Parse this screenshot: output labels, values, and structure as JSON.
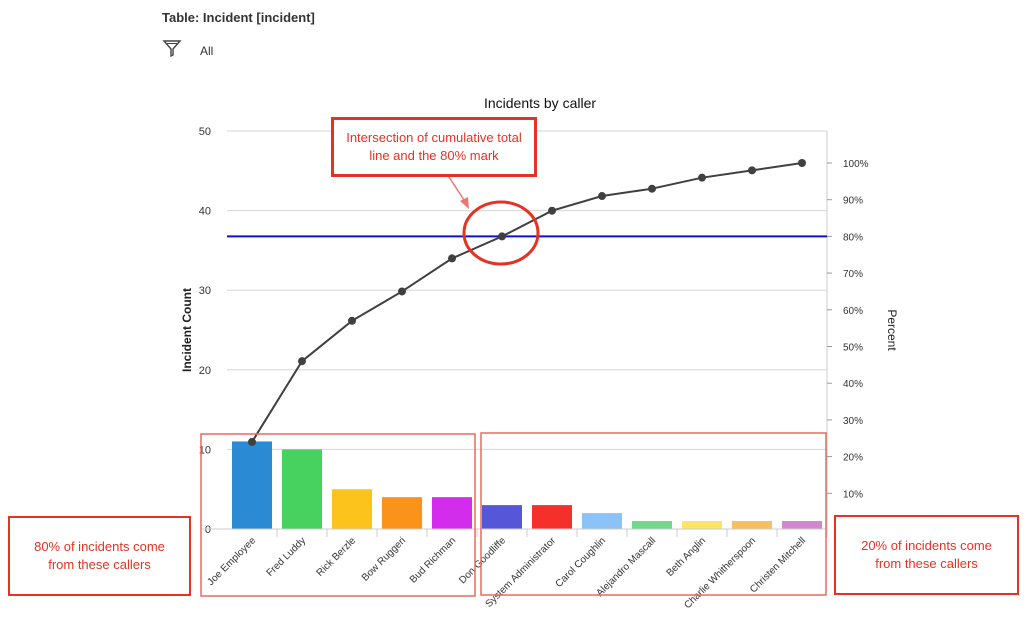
{
  "header": {
    "table_title": "Table: Incident [incident]",
    "filter_label": "All",
    "filter_icon": "funnel-icon"
  },
  "chart_data": {
    "type": "bar",
    "title": "Incidents by caller",
    "ylabel": "Incident Count",
    "y2label": "Percent",
    "ylim": [
      0,
      50
    ],
    "y2lim": [
      0,
      100
    ],
    "yticks": [
      0,
      10,
      20,
      30,
      40,
      50
    ],
    "y2ticks": [
      "10%",
      "20%",
      "30%",
      "40%",
      "50%",
      "60%",
      "70%",
      "80%",
      "90%",
      "100%"
    ],
    "categories": [
      "Joe Employee",
      "Fred Luddy",
      "Rick Berzle",
      "Bow Ruggeri",
      "Bud Richman",
      "Don Goodliffe",
      "System Administrator",
      "Carol Coughlin",
      "Alejandro Mascall",
      "Beth Anglin",
      "Charlie Whitherspoon",
      "Christen Mitchell"
    ],
    "values": [
      11,
      10,
      5,
      4,
      4,
      3,
      3,
      2,
      1,
      1,
      1,
      1
    ],
    "colors": [
      "#2a8ad4",
      "#47d15f",
      "#fcc31d",
      "#fb9219",
      "#d42cec",
      "#5557d8",
      "#f5302a",
      "#8cc3f6",
      "#72d88c",
      "#fde366",
      "#f7bf60",
      "#d385ce"
    ],
    "cumulative_percent": [
      24,
      46,
      57,
      65,
      74,
      80,
      87,
      91,
      93,
      96,
      98,
      100
    ],
    "threshold_percent": 80,
    "grid": true,
    "legend": "none"
  },
  "annotations": {
    "intersection": "Intersection of cumulative total line and the 80% mark",
    "left_group": "80% of incidents come from these callers",
    "right_group": "20% of incidents come from these callers"
  },
  "colors": {
    "annotation": "#e53222",
    "threshold_line": "#1010d6",
    "cumulative_line": "#404040"
  }
}
